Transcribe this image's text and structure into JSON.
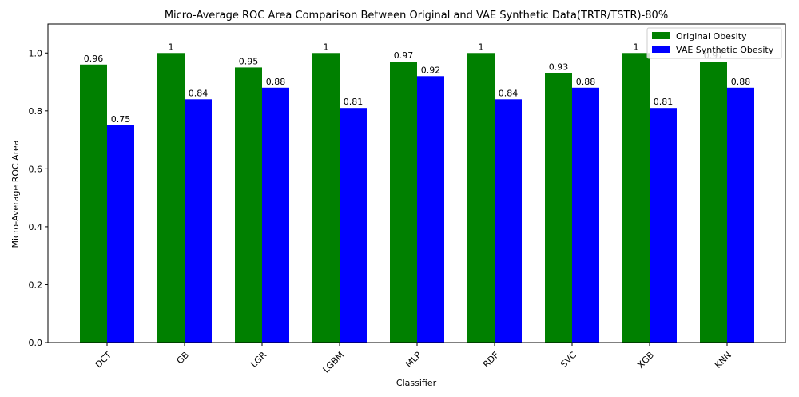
{
  "chart_data": {
    "type": "bar",
    "title": "Micro-Average ROC Area Comparison Between Original and VAE Synthetic Data(TRTR/TSTR)-80%",
    "xlabel": "Classifier",
    "ylabel": "Micro-Average ROC Area",
    "ylim": [
      0,
      1.1
    ],
    "yticks": [
      "0.0",
      "0.2",
      "0.4",
      "0.6",
      "0.8",
      "1.0"
    ],
    "categories": [
      "DCT",
      "GB",
      "LGR",
      "LGBM",
      "MLP",
      "RDF",
      "SVC",
      "XGB",
      "KNN"
    ],
    "series": [
      {
        "name": "Original Obesity",
        "color": "#008000",
        "values": [
          0.96,
          1,
          0.95,
          1,
          0.97,
          1,
          0.93,
          1,
          0.97
        ],
        "labels": [
          "0.96",
          "1",
          "0.95",
          "1",
          "0.97",
          "1",
          "0.93",
          "1",
          "0.97"
        ]
      },
      {
        "name": "VAE Synthetic Obesity",
        "color": "#0000ff",
        "values": [
          0.75,
          0.84,
          0.88,
          0.81,
          0.92,
          0.84,
          0.88,
          0.81,
          0.88
        ],
        "labels": [
          "0.75",
          "0.84",
          "0.88",
          "0.81",
          "0.92",
          "0.84",
          "0.88",
          "0.81",
          "0.88"
        ]
      }
    ],
    "legend_position": "top-right",
    "grid": false
  }
}
